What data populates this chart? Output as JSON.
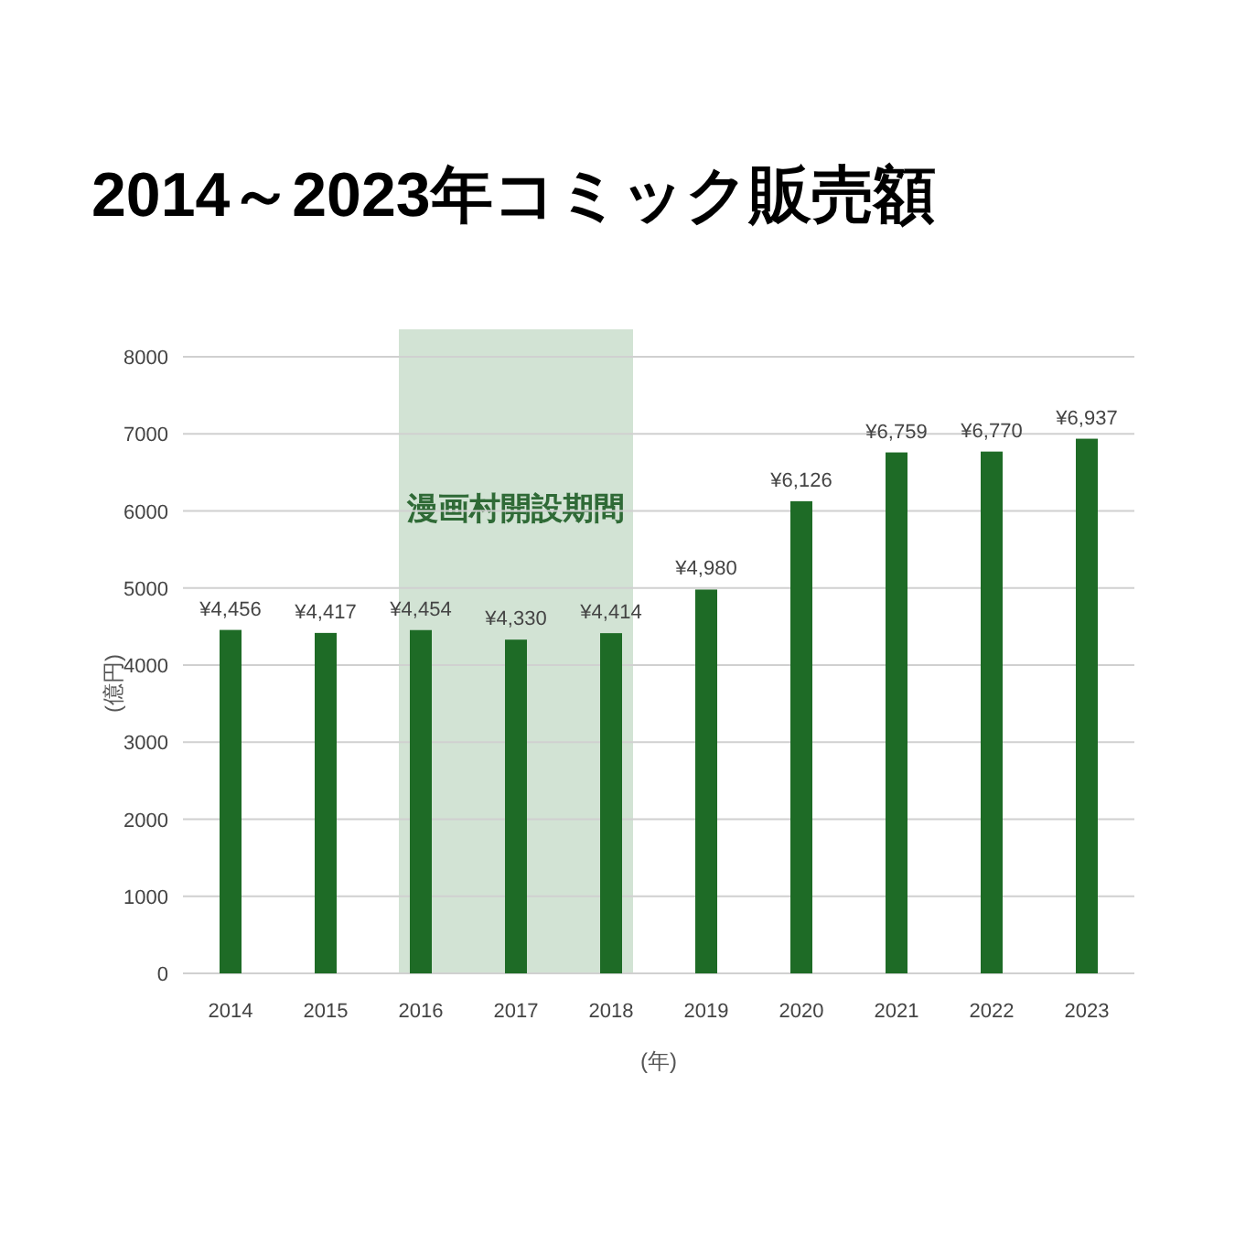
{
  "chart_data": {
    "type": "bar",
    "title": "2014～2023年コミック販売額",
    "xlabel": "(年)",
    "ylabel": "(億円)",
    "categories": [
      "2014",
      "2015",
      "2016",
      "2017",
      "2018",
      "2019",
      "2020",
      "2021",
      "2022",
      "2023"
    ],
    "values": [
      4456,
      4417,
      4454,
      4330,
      4414,
      4980,
      6126,
      6759,
      6770,
      6937
    ],
    "value_labels": [
      "¥4,456",
      "¥4,417",
      "¥4,454",
      "¥4,330",
      "¥4,414",
      "¥4,980",
      "¥6,126",
      "¥6,759",
      "¥6,770",
      "¥6,937"
    ],
    "color": "#1e6b26",
    "ylim": [
      0,
      8000
    ],
    "yticks": [
      0,
      1000,
      2000,
      3000,
      4000,
      5000,
      6000,
      7000,
      8000
    ],
    "grid": "y",
    "bands": [
      {
        "axis": "x",
        "from": "2016",
        "to": "2018",
        "label": "漫画村開設期間",
        "color": "#d2e3d4"
      }
    ]
  }
}
